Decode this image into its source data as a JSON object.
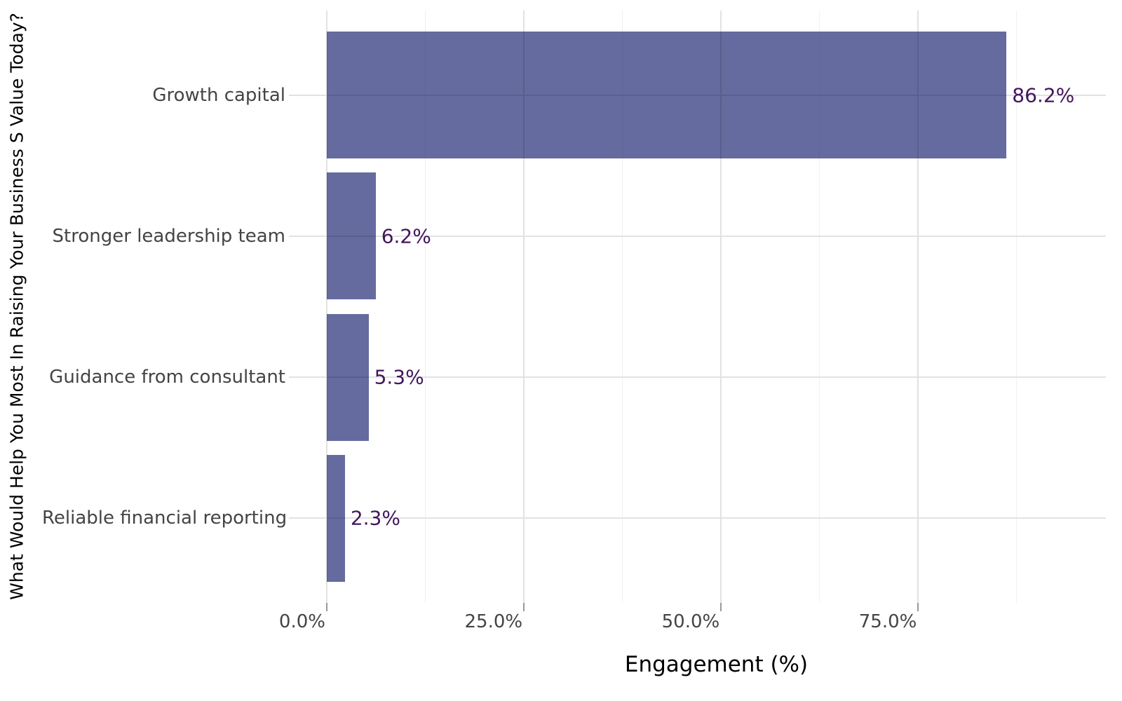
{
  "chart_data": {
    "type": "bar",
    "orientation": "horizontal",
    "title": "",
    "xlabel": "Engagement (%)",
    "ylabel": "What Would Help You Most In Raising Your Business S Value Today?",
    "categories": [
      "Growth capital",
      "Stronger leadership team",
      "Guidance from consultant",
      "Reliable financial reporting"
    ],
    "values": [
      86.2,
      6.2,
      5.3,
      2.3
    ],
    "value_labels": [
      "86.2%",
      "6.2%",
      "5.3%",
      "2.3%"
    ],
    "xticks": [
      {
        "value": 0,
        "label": "0.0%"
      },
      {
        "value": 25,
        "label": "25.0%"
      },
      {
        "value": 50,
        "label": "50.0%"
      },
      {
        "value": 75,
        "label": "75.0%"
      }
    ],
    "xlim": [
      -4.8,
      98.8
    ],
    "minor_step": 12.5,
    "major_step": 25,
    "grid": true,
    "legend": false,
    "bar_width_fraction": 0.9,
    "colors": {
      "bar": "#656b9f",
      "value_label": "#42165c",
      "axis_text": "#444444",
      "title_text": "#000000",
      "grid_major": "#e2e2e2",
      "grid_minor": "#f0f0f0",
      "tick": "#999999",
      "background": "#ffffff"
    }
  }
}
